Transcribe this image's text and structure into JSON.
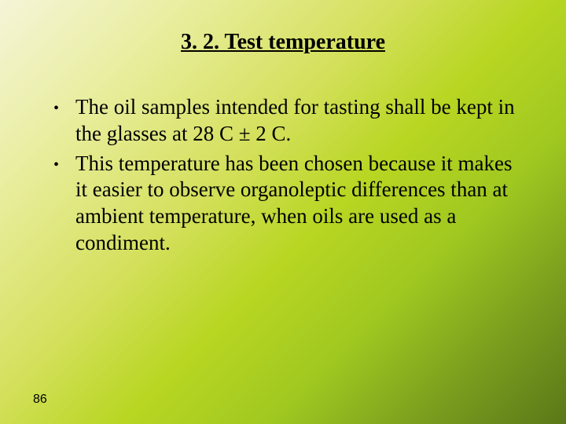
{
  "slide": {
    "title": "3. 2. Test temperature",
    "bullets": [
      "The oil samples intended for tasting shall be kept in the glasses at 28 C ± 2 C.",
      "This temperature has been chosen because it makes it easier to observe organoleptic differences than at ambient temperature, when oils are used as a condiment."
    ],
    "page_number": "86"
  },
  "style": {
    "background_gradient": [
      "#f5f5d8",
      "#e8ed9c",
      "#d4e05c",
      "#b8d622",
      "#a0c820",
      "#7a9e1e",
      "#5a7818"
    ],
    "text_color": "#000000",
    "title_fontsize": 28,
    "body_fontsize": 27,
    "page_number_fontsize": 16,
    "font_family": "Times New Roman"
  }
}
